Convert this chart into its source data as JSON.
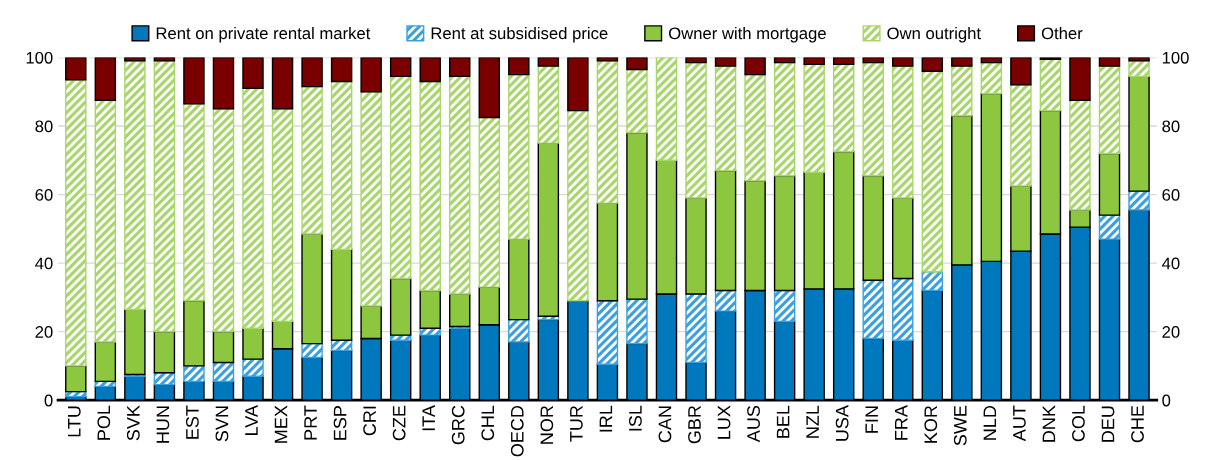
{
  "chart_data": {
    "type": "bar",
    "stacked": true,
    "categories": [
      "LTU",
      "POL",
      "SVK",
      "HUN",
      "EST",
      "SVN",
      "LVA",
      "MEX",
      "PRT",
      "ESP",
      "CRI",
      "CZE",
      "ITA",
      "GRC",
      "CHL",
      "OECD",
      "NOR",
      "TUR",
      "IRL",
      "ISL",
      "CAN",
      "GBR",
      "LUX",
      "AUS",
      "BEL",
      "NZL",
      "USA",
      "FIN",
      "FRA",
      "KOR",
      "SWE",
      "NLD",
      "AUT",
      "DNK",
      "COL",
      "DEU",
      "CHE"
    ],
    "series": [
      {
        "name": "Rent on private rental market",
        "color": "#0078be",
        "values": [
          1,
          4,
          7,
          4.5,
          5.5,
          5.5,
          7,
          15,
          12.5,
          14.5,
          18,
          17.5,
          19,
          21,
          22,
          17,
          23.5,
          29,
          10.5,
          16.5,
          31,
          11,
          26,
          32,
          23,
          32.5,
          32.5,
          18,
          17.5,
          32,
          39.5,
          40.5,
          43.5,
          48.5,
          50.5,
          47,
          55.5
        ]
      },
      {
        "name": "Rent at subsidised price",
        "color": "#3aa0e0",
        "values": [
          1.5,
          1.5,
          0.5,
          3.5,
          4.5,
          5.5,
          5,
          0,
          4,
          3,
          0,
          1.5,
          2,
          0.5,
          0,
          6.5,
          1,
          0,
          18.5,
          13,
          0,
          20,
          6,
          0,
          9,
          0,
          0,
          17,
          18,
          5.5,
          0,
          0,
          0,
          0,
          0,
          7,
          5.5
        ]
      },
      {
        "name": "Owner with mortgage",
        "color": "#8dc63f",
        "values": [
          7.5,
          11.5,
          19,
          12,
          19,
          9,
          9,
          8,
          32,
          26.5,
          9.5,
          16.5,
          11,
          9.5,
          11,
          23.5,
          50.5,
          0,
          28.5,
          48.5,
          39,
          28,
          35,
          32,
          33.5,
          34,
          40,
          30.5,
          23.5,
          0,
          43.5,
          49,
          19,
          36,
          5,
          18,
          33.5
        ]
      },
      {
        "name": "Own outright",
        "color": "#a8d66a",
        "values": [
          83.5,
          70.5,
          72.5,
          79,
          57.5,
          65,
          70,
          62,
          43,
          49,
          62.5,
          59,
          61,
          63.5,
          49.5,
          48,
          22.5,
          55.5,
          41.5,
          18.5,
          30,
          39.5,
          30.5,
          31,
          33,
          31.5,
          25.5,
          33,
          38.5,
          58.5,
          14.5,
          9,
          29.5,
          15,
          32,
          25.5,
          4.5
        ]
      },
      {
        "name": "Other",
        "color": "#7a0000",
        "values": [
          6.5,
          12.5,
          1,
          1,
          13.5,
          15,
          9,
          15,
          8.5,
          7,
          10,
          5.5,
          7,
          5.5,
          17.5,
          5,
          2.5,
          15.5,
          1,
          3.5,
          0,
          1.5,
          2.5,
          5,
          1.5,
          2,
          2,
          1.5,
          2.5,
          4,
          2.5,
          1.5,
          8,
          0.5,
          12.5,
          2.5,
          1
        ]
      }
    ],
    "ylim": [
      0,
      100
    ],
    "yticks": [
      0,
      20,
      40,
      60,
      80,
      100
    ],
    "y2lim": [
      0,
      100
    ],
    "y2ticks": [
      0,
      20,
      40,
      60,
      80,
      100
    ],
    "grid": "y",
    "legend": "top"
  }
}
